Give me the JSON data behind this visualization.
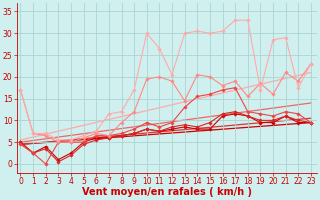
{
  "background_color": "#cff0ee",
  "grid_color": "#aad4d0",
  "xlabel": "Vent moyen/en rafales ( km/h )",
  "xlabel_color": "#cc0000",
  "xlabel_fontsize": 7,
  "yticks": [
    0,
    5,
    10,
    15,
    20,
    25,
    30,
    35
  ],
  "xticks": [
    0,
    1,
    2,
    3,
    4,
    5,
    6,
    7,
    8,
    9,
    10,
    11,
    12,
    13,
    14,
    15,
    16,
    17,
    18,
    19,
    20,
    21,
    22,
    23
  ],
  "ylim": [
    -2,
    37
  ],
  "xlim": [
    -0.3,
    23.5
  ],
  "tick_color": "#cc0000",
  "tick_fontsize": 5.5,
  "series": [
    {
      "x": [
        0,
        1,
        2,
        3,
        4,
        5,
        6,
        7,
        8,
        9,
        10,
        11,
        12,
        13,
        14,
        15,
        16,
        17,
        18,
        19,
        20,
        21,
        22,
        23
      ],
      "y": [
        5,
        2.5,
        4,
        1,
        2.5,
        5,
        6,
        6,
        6.5,
        7,
        8,
        7.5,
        8,
        8.5,
        8,
        8,
        11,
        11.5,
        11,
        9.5,
        9.5,
        11,
        9.5,
        9.5
      ],
      "color": "#cc0000",
      "linewidth": 0.8,
      "marker": "D",
      "markersize": 1.8
    },
    {
      "x": [
        0,
        1,
        2,
        3,
        4,
        5,
        6,
        7,
        8,
        9,
        10,
        11,
        12,
        13,
        14,
        15,
        16,
        17,
        18,
        19,
        20,
        21,
        22,
        23
      ],
      "y": [
        5,
        2.5,
        3.5,
        0.5,
        2,
        4.5,
        5.5,
        6.0,
        6.5,
        7.0,
        8.0,
        7.5,
        8.5,
        9,
        8.5,
        9.5,
        11.5,
        12,
        11,
        10,
        10,
        11,
        10,
        9.5
      ],
      "color": "#dd2222",
      "linewidth": 0.8,
      "marker": "D",
      "markersize": 1.8
    },
    {
      "x": [
        0,
        1,
        2,
        3,
        4,
        5,
        6,
        7,
        8,
        9,
        10,
        11,
        12,
        13,
        14,
        15,
        16,
        17,
        18,
        19,
        20,
        21,
        22,
        23
      ],
      "y": [
        4.5,
        2.5,
        0,
        5,
        5,
        5,
        6.5,
        6.5,
        7,
        8,
        9.5,
        8.5,
        9.5,
        13,
        15.5,
        16,
        17,
        17.5,
        12,
        11.5,
        11,
        12,
        11.5,
        9.5
      ],
      "color": "#ee4444",
      "linewidth": 0.8,
      "marker": "D",
      "markersize": 1.8
    },
    {
      "x": [
        0,
        1,
        2,
        3,
        4,
        5,
        6,
        7,
        8,
        9,
        10,
        11,
        12,
        13,
        14,
        15,
        16,
        17,
        18,
        19,
        20,
        21,
        22,
        23
      ],
      "y": [
        17,
        7,
        6.5,
        5,
        5,
        6,
        7,
        6.5,
        9.5,
        12,
        19.5,
        20,
        19,
        14.5,
        20.5,
        20,
        18,
        19,
        15.5,
        18.5,
        16,
        21,
        19,
        23
      ],
      "color": "#ff8888",
      "linewidth": 0.8,
      "marker": "D",
      "markersize": 1.8
    },
    {
      "x": [
        0,
        1,
        2,
        3,
        4,
        5,
        6,
        7,
        8,
        9,
        10,
        11,
        12,
        13,
        14,
        15,
        16,
        17,
        18,
        19,
        20,
        21,
        22,
        23
      ],
      "y": [
        17,
        7,
        7,
        5.5,
        5.5,
        6.5,
        7.5,
        11.5,
        12,
        17,
        30,
        26.5,
        20.5,
        30,
        30.5,
        30,
        30.5,
        33,
        33,
        17,
        28.5,
        29,
        17.5,
        23
      ],
      "color": "#ffaaaa",
      "linewidth": 0.8,
      "marker": "D",
      "markersize": 1.8
    }
  ],
  "trend_lines": [
    {
      "x": [
        0,
        23
      ],
      "y": [
        4.5,
        9.5
      ],
      "color": "#cc0000",
      "linewidth": 0.9
    },
    {
      "x": [
        0,
        23
      ],
      "y": [
        4.5,
        10.5
      ],
      "color": "#dd3333",
      "linewidth": 0.9
    },
    {
      "x": [
        0,
        23
      ],
      "y": [
        5.0,
        14.0
      ],
      "color": "#ee6666",
      "linewidth": 0.9
    },
    {
      "x": [
        0,
        23
      ],
      "y": [
        5.5,
        21.0
      ],
      "color": "#ffaaaa",
      "linewidth": 0.9
    }
  ]
}
